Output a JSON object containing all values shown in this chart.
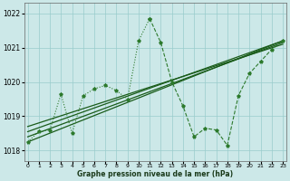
{
  "xlabel": "Graphe pression niveau de la mer (hPa)",
  "ylim": [
    1017.7,
    1022.3
  ],
  "xlim": [
    -0.3,
    23.3
  ],
  "yticks": [
    1018,
    1019,
    1020,
    1021,
    1022
  ],
  "xticks": [
    0,
    1,
    2,
    3,
    4,
    5,
    6,
    7,
    8,
    9,
    10,
    11,
    12,
    13,
    14,
    15,
    16,
    17,
    18,
    19,
    20,
    21,
    22,
    23
  ],
  "bg_color": "#cce8e8",
  "grid_color": "#99cccc",
  "line_color_dot": "#2d7a2d",
  "line_color_solid": "#1a5c1a",
  "series_up": {
    "x": [
      0,
      1,
      2,
      3,
      4,
      5,
      6,
      7,
      8,
      9,
      10,
      11
    ],
    "y": [
      1018.25,
      1018.55,
      1018.6,
      1019.65,
      1018.5,
      1019.6,
      1019.8,
      1019.9,
      1019.75,
      1019.5,
      1021.2,
      1021.85
    ]
  },
  "series_down": {
    "x": [
      11,
      12,
      13,
      14,
      15,
      16,
      17,
      18,
      19,
      20,
      21,
      22,
      23
    ],
    "y": [
      1021.85,
      1021.15,
      1020.0,
      1019.3,
      1018.4,
      1018.65,
      1018.6,
      1018.15,
      1019.6,
      1020.25,
      1020.6,
      1020.95,
      1021.2
    ]
  },
  "trend1": {
    "x": [
      0,
      23
    ],
    "y": [
      1018.7,
      1021.1
    ]
  },
  "trend2": {
    "x": [
      0,
      23
    ],
    "y": [
      1018.4,
      1021.15
    ]
  },
  "trend3": {
    "x": [
      0,
      23
    ],
    "y": [
      1018.55,
      1021.2
    ]
  },
  "trend4": {
    "x": [
      0,
      23
    ],
    "y": [
      1018.25,
      1021.2
    ]
  }
}
